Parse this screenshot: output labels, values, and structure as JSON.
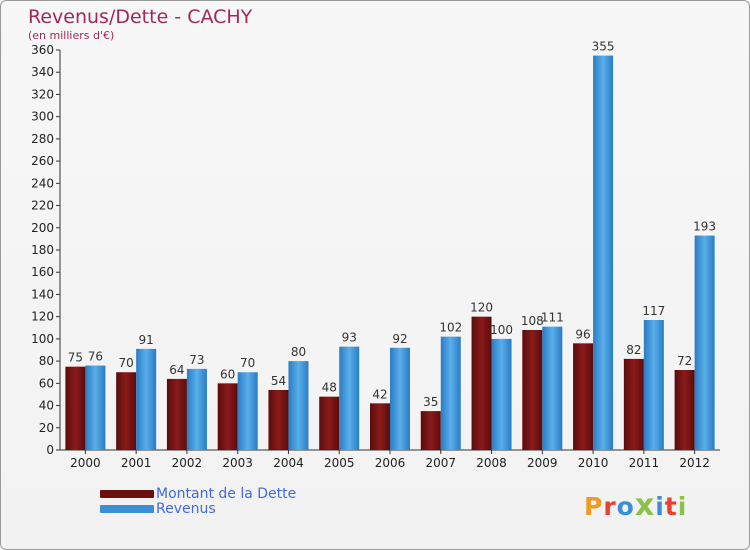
{
  "title": "Revenus/Dette - CACHY",
  "subtitle": "(en milliers d'€)",
  "colors": {
    "dette": "#8b1a1a",
    "revenus": "#3a8fd8",
    "title": "#a0285a",
    "legend_text": "#4169e1"
  },
  "legend": {
    "items": [
      {
        "label": "Montant de la Dette",
        "color": "#6b0f0f"
      },
      {
        "label": "Revenus",
        "color": "#3a8fd8"
      }
    ],
    "placement": "bottom-left"
  },
  "logo": {
    "text": "Proxiti",
    "letter_colors": [
      "#f29a1d",
      "#e9402f",
      "#3a8fd8",
      "#8bc34a",
      "#3a8fd8",
      "#e9402f",
      "#8bc34a"
    ],
    "icon": "proxiti-logo"
  },
  "chart_data": {
    "type": "bar",
    "title": "Revenus/Dette - CACHY",
    "subtitle": "(en milliers d'€)",
    "categories": [
      "2000",
      "2001",
      "2002",
      "2003",
      "2004",
      "2005",
      "2006",
      "2007",
      "2008",
      "2009",
      "2010",
      "2011",
      "2012"
    ],
    "series": [
      {
        "name": "Montant de la Dette",
        "values": [
          75,
          70,
          64,
          60,
          54,
          48,
          42,
          35,
          120,
          108,
          96,
          82,
          72
        ]
      },
      {
        "name": "Revenus",
        "values": [
          76,
          91,
          73,
          70,
          80,
          93,
          92,
          102,
          100,
          111,
          355,
          117,
          193
        ]
      }
    ],
    "ylim": [
      0,
      360
    ],
    "yticks": [
      0,
      20,
      40,
      60,
      80,
      100,
      120,
      140,
      160,
      180,
      200,
      220,
      240,
      260,
      280,
      300,
      320,
      340,
      360
    ],
    "grid": false,
    "legend": "bottom-left"
  }
}
